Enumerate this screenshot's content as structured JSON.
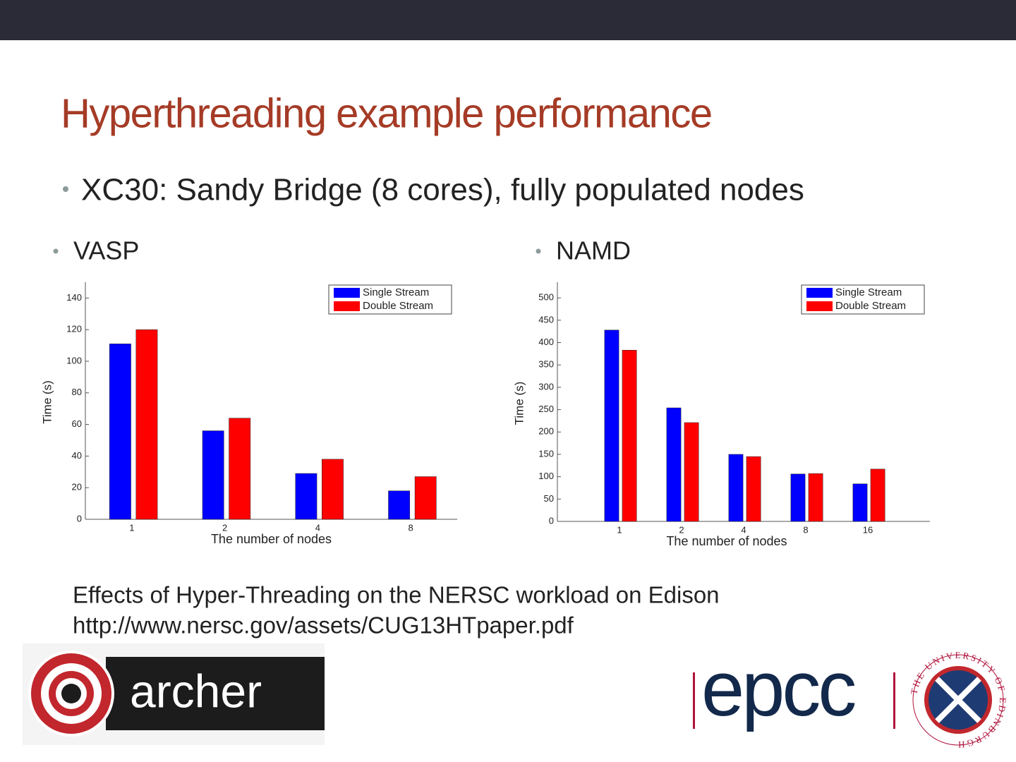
{
  "slide": {
    "title": "Hyperthreading example performance",
    "bullet": "XC30: Sandy Bridge (8 cores), fully populated nodes",
    "caption": [
      "Effects of Hyper-Threading on the NERSC workload on Edison",
      "http://www.nersc.gov/assets/CUG13HTpaper.pdf"
    ],
    "logos": {
      "archer": "archer",
      "epcc": "epcc",
      "edinburgh": "THE UNIVERSITY OF EDINBURGH"
    }
  },
  "chart_data": [
    {
      "type": "bar",
      "title": "VASP",
      "xlabel": "The number of nodes",
      "ylabel": "Time (s)",
      "categories": [
        "1",
        "2",
        "4",
        "8"
      ],
      "series": [
        {
          "name": "Single Stream",
          "color": "#0000ff",
          "values": [
            111,
            56,
            29,
            18
          ]
        },
        {
          "name": "Double Stream",
          "color": "#ff0000",
          "values": [
            120,
            64,
            38,
            27
          ]
        }
      ],
      "ylim": [
        0,
        150
      ],
      "yticks": [
        0,
        20,
        40,
        60,
        80,
        100,
        120,
        140
      ],
      "legend": "upper right"
    },
    {
      "type": "bar",
      "title": "NAMD",
      "xlabel": "The number of nodes",
      "ylabel": "Time (s)",
      "categories": [
        "1",
        "2",
        "4",
        "8",
        "16"
      ],
      "series": [
        {
          "name": "Single Stream",
          "color": "#0000ff",
          "values": [
            428,
            254,
            150,
            106,
            84
          ]
        },
        {
          "name": "Double Stream",
          "color": "#ff0000",
          "values": [
            383,
            221,
            145,
            107,
            117
          ]
        }
      ],
      "ylim": [
        0,
        535
      ],
      "yticks": [
        0,
        50,
        100,
        150,
        200,
        250,
        300,
        350,
        400,
        450,
        500
      ],
      "legend": "upper right"
    }
  ]
}
